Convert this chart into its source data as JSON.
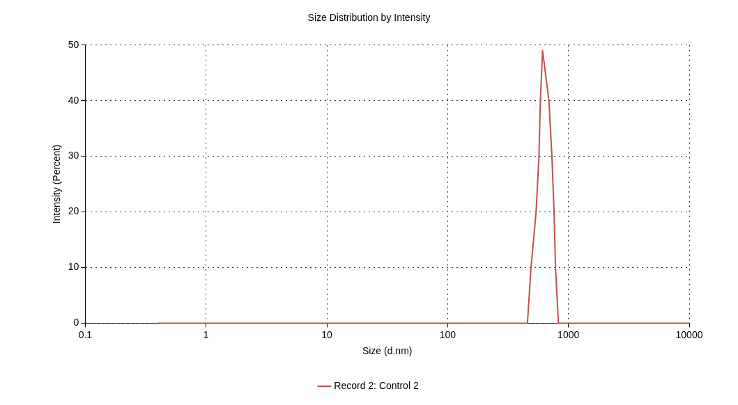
{
  "chart_data": {
    "type": "line",
    "title": "Size Distribution by Intensity",
    "xlabel": "Size (d.nm)",
    "ylabel": "Intensity (Percent)",
    "series": [
      {
        "name": "Record 2: Control 2",
        "color": "#c0504d",
        "x": [
          0.4,
          458,
          490,
          540,
          570,
          586,
          611,
          690,
          730,
          760,
          782,
          826,
          10000
        ],
        "values": [
          0,
          0,
          10,
          20,
          30,
          40,
          49,
          40,
          30,
          20,
          10,
          0,
          0
        ]
      }
    ],
    "log": "x",
    "xlim": [
      0.1,
      10000
    ],
    "xticks": [
      0.1,
      1,
      10,
      100,
      1000,
      10000
    ],
    "ylim": [
      0,
      50
    ],
    "yticks": [
      0,
      10,
      20,
      30,
      40,
      50
    ],
    "grid": true,
    "legend": "bottom",
    "marker": "none",
    "line_style": "solid"
  }
}
